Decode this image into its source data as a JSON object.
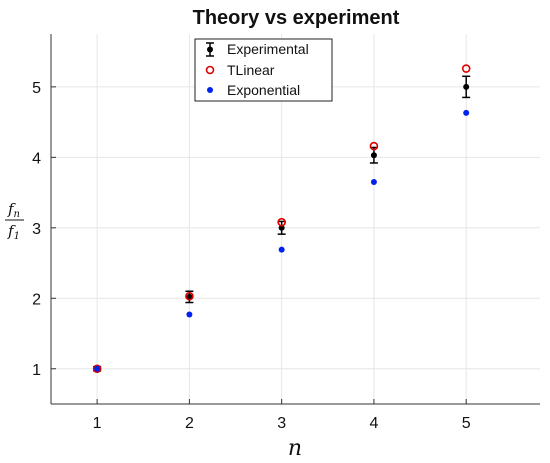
{
  "chart_data": {
    "type": "scatter",
    "title": "Theory vs experiment",
    "xlabel": "n",
    "ylabel": {
      "numerator": "f",
      "numerator_sub": "n",
      "denominator": "f",
      "denominator_sub": "1"
    },
    "xlim": [
      0.5,
      5.8
    ],
    "ylim": [
      0.5,
      5.75
    ],
    "xticks": [
      1,
      2,
      3,
      4,
      5
    ],
    "yticks": [
      1,
      2,
      3,
      4,
      5
    ],
    "grid": true,
    "legend_position": "top-center",
    "series": [
      {
        "name": "Experimental",
        "marker": "filled-circle-errorbar",
        "color": "#000000",
        "x": [
          1,
          2,
          3,
          4,
          5
        ],
        "y": [
          1.0,
          2.02,
          3.0,
          4.03,
          5.0
        ],
        "err": [
          0.03,
          0.08,
          0.09,
          0.11,
          0.15
        ]
      },
      {
        "name": "TLinear",
        "marker": "open-circle",
        "color": "#dd0000",
        "x": [
          1,
          2,
          3,
          4,
          5
        ],
        "y": [
          1.0,
          2.03,
          3.08,
          4.16,
          5.26
        ]
      },
      {
        "name": "Exponential",
        "marker": "filled-circle",
        "color": "#0022ee",
        "x": [
          1,
          2,
          3,
          4,
          5
        ],
        "y": [
          1.0,
          1.77,
          2.69,
          3.65,
          4.63
        ]
      }
    ]
  }
}
